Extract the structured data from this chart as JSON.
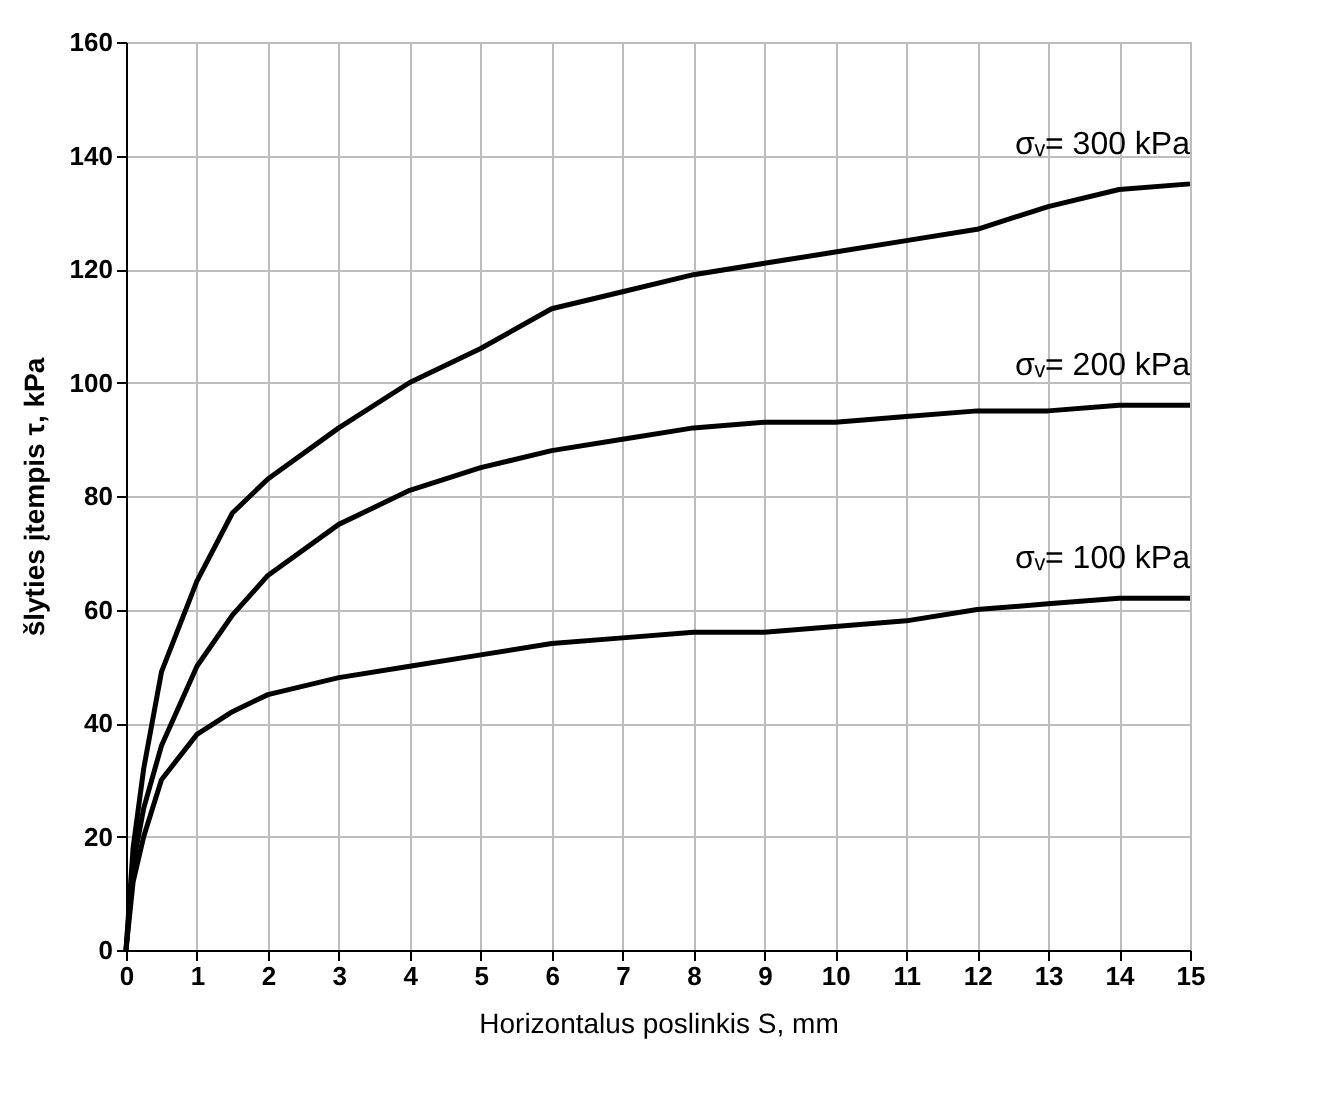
{
  "chart_data": {
    "type": "line",
    "xlabel": "Horizontalus poslinkis S, mm",
    "ylabel": "šlyties įtempis τ, kPa",
    "xlim": [
      0,
      15
    ],
    "xticks": [
      0,
      1,
      2,
      3,
      4,
      5,
      6,
      7,
      8,
      9,
      10,
      11,
      12,
      13,
      14,
      15
    ],
    "ylim": [
      0,
      160
    ],
    "yticks": [
      0,
      20,
      40,
      60,
      80,
      100,
      120,
      140,
      160
    ],
    "grid": true,
    "legend": false,
    "marker": "none",
    "line_style": "solid",
    "series": [
      {
        "name": "σᵥ= 300 kPa",
        "color": "#000000",
        "x": [
          0,
          0.1,
          0.25,
          0.5,
          1,
          1.5,
          2,
          3,
          4,
          5,
          6,
          7,
          8,
          9,
          10,
          11,
          12,
          13,
          14,
          15
        ],
        "values": [
          0,
          18,
          32,
          49,
          65,
          77,
          83,
          92,
          100,
          106,
          113,
          116,
          119,
          121,
          123,
          125,
          127,
          131,
          134,
          135
        ]
      },
      {
        "name": "σᵥ= 200 kPa",
        "color": "#000000",
        "x": [
          0,
          0.1,
          0.25,
          0.5,
          1,
          1.5,
          2,
          3,
          4,
          5,
          6,
          7,
          8,
          9,
          10,
          11,
          12,
          13,
          14,
          15
        ],
        "values": [
          0,
          15,
          25,
          36,
          50,
          59,
          66,
          75,
          81,
          85,
          88,
          90,
          92,
          93,
          93,
          94,
          95,
          95,
          96,
          96
        ]
      },
      {
        "name": "σᵥ= 100 kPa",
        "color": "#000000",
        "x": [
          0,
          0.1,
          0.25,
          0.5,
          1,
          1.5,
          2,
          3,
          4,
          5,
          6,
          7,
          8,
          9,
          10,
          11,
          12,
          13,
          14,
          15
        ],
        "values": [
          0,
          12,
          20,
          30,
          38,
          42,
          45,
          48,
          50,
          52,
          54,
          55,
          56,
          56,
          57,
          58,
          60,
          61,
          62,
          62
        ]
      }
    ]
  }
}
